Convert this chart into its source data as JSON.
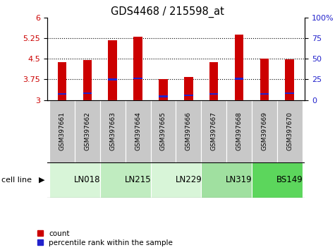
{
  "title": "GDS4468 / 215598_at",
  "samples": [
    "GSM397661",
    "GSM397662",
    "GSM397663",
    "GSM397664",
    "GSM397665",
    "GSM397666",
    "GSM397667",
    "GSM397668",
    "GSM397669",
    "GSM397670"
  ],
  "count_values": [
    4.38,
    4.45,
    5.18,
    5.3,
    3.76,
    3.84,
    4.37,
    5.37,
    4.5,
    4.47
  ],
  "percentile_values": [
    3.22,
    3.25,
    3.75,
    3.78,
    3.13,
    3.17,
    3.22,
    3.77,
    3.22,
    3.25
  ],
  "cell_lines": [
    {
      "name": "LN018",
      "start": 0,
      "end": 2,
      "color": "#d8f5d8"
    },
    {
      "name": "LN215",
      "start": 2,
      "end": 4,
      "color": "#c0ecc0"
    },
    {
      "name": "LN229",
      "start": 4,
      "end": 6,
      "color": "#d8f5d8"
    },
    {
      "name": "LN319",
      "start": 6,
      "end": 8,
      "color": "#a0e0a0"
    },
    {
      "name": "BS149",
      "start": 8,
      "end": 10,
      "color": "#5cd65c"
    }
  ],
  "ylim_min": 3.0,
  "ylim_max": 6.0,
  "yticks_left": [
    3.0,
    3.75,
    4.5,
    5.25,
    6.0
  ],
  "ytick_labels_left": [
    "3",
    "3.75",
    "4.5",
    "5.25",
    "6"
  ],
  "yticks_right_pct": [
    0,
    25,
    50,
    75,
    100
  ],
  "bar_color": "#cc0000",
  "percentile_color": "#2222cc",
  "bar_width": 0.35,
  "base_value": 3.0,
  "tick_label_color_left": "#cc0000",
  "tick_label_color_right": "#2222cc",
  "legend_count_label": "count",
  "legend_percentile_label": "percentile rank within the sample",
  "cell_line_label": "cell line",
  "sample_box_color": "#c8c8c8",
  "grid_yticks": [
    3.75,
    4.5,
    5.25
  ]
}
